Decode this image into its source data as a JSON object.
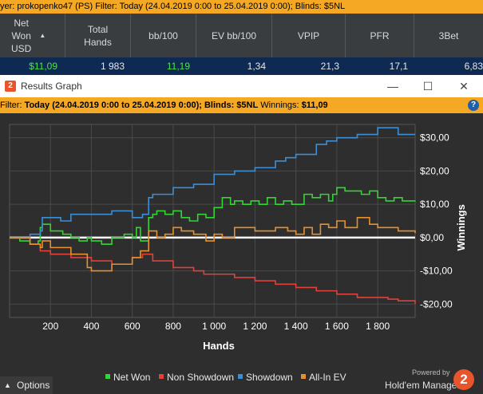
{
  "background_filter_text": "yer: prokopenko47 (PS)  Filter: Today (24.04.2019 0:00 to 25.04.2019 0:00); Blinds: $5NL",
  "stats": {
    "headers": [
      "Net\nWon\nUSD",
      "Total\nHands",
      "bb/100",
      "EV bb/100",
      "VPIP",
      "PFR",
      "3Bet"
    ],
    "row": [
      "$11,09",
      "1 983",
      "11,19",
      "1,34",
      "21,3",
      "17,1",
      "6,83"
    ]
  },
  "window": {
    "title": "Results Graph",
    "logo_text": "2",
    "minimize": "—",
    "maximize": "☐",
    "close": "✕"
  },
  "filter": {
    "prefix": "Filter:",
    "value": "Today (24.04.2019 0:00 to 25.04.2019 0:00); Blinds: $5NL",
    "winnings_label": "Winnings:",
    "winnings_value": "$11,09",
    "help": "?"
  },
  "options_label": "Options",
  "brand": {
    "powered_by": "Powered by",
    "name": "Hold'em Manager",
    "logo": "2"
  },
  "colors": {
    "net_won": "#35d435",
    "non_showdown": "#e0413a",
    "showdown": "#3a8fd6",
    "all_in_ev": "#e8902e",
    "accent_orange": "#f4a823"
  },
  "chart_data": {
    "type": "line",
    "xlabel": "Hands",
    "ylabel": "Winnings",
    "xlim": [
      0,
      1983
    ],
    "ylim": [
      -24,
      34
    ],
    "x_ticks": [
      200,
      400,
      600,
      800,
      1000,
      1200,
      1400,
      1600,
      1800
    ],
    "x_tick_labels": [
      "200",
      "400",
      "600",
      "800",
      "1 000",
      "1 200",
      "1 400",
      "1 600",
      "1 800"
    ],
    "y_ticks": [
      30,
      20,
      10,
      0,
      -10,
      -20
    ],
    "y_tick_labels": [
      "$30,00",
      "$20,00",
      "$10,00",
      "$0,00",
      "-$10,00",
      "-$20,00"
    ],
    "grid": true,
    "legend_position": "bottom",
    "series": [
      {
        "name": "Net Won",
        "color": "#35d435",
        "x": [
          0,
          50,
          100,
          140,
          150,
          160,
          200,
          260,
          300,
          340,
          380,
          400,
          450,
          500,
          560,
          600,
          620,
          640,
          680,
          700,
          720,
          760,
          800,
          840,
          880,
          920,
          960,
          1000,
          1040,
          1080,
          1100,
          1140,
          1180,
          1220,
          1260,
          1300,
          1340,
          1380,
          1400,
          1440,
          1480,
          1520,
          1560,
          1580,
          1600,
          1640,
          1680,
          1720,
          1760,
          1800,
          1840,
          1880,
          1920,
          1960,
          1983
        ],
        "values": [
          0,
          -1,
          -2,
          -1,
          3,
          4,
          2,
          1,
          0,
          -1,
          0,
          -1,
          -2,
          0,
          1,
          0,
          3,
          -1,
          6,
          7,
          8,
          7,
          8,
          6,
          5,
          7,
          6,
          9,
          12,
          10,
          11,
          10,
          11,
          10,
          12,
          10,
          11,
          10,
          10,
          13,
          12,
          13,
          11,
          13,
          15,
          14,
          14,
          13,
          14,
          12,
          11,
          12,
          11,
          11,
          11.09
        ]
      },
      {
        "name": "Non Showdown",
        "color": "#e0413a",
        "x": [
          0,
          100,
          150,
          200,
          300,
          400,
          500,
          600,
          650,
          700,
          800,
          900,
          950,
          1000,
          1100,
          1200,
          1300,
          1400,
          1500,
          1600,
          1700,
          1800,
          1850,
          1900,
          1983
        ],
        "values": [
          0,
          -2,
          -4,
          -5,
          -6,
          -7,
          -8,
          -6,
          -5,
          -7,
          -9,
          -10,
          -11,
          -11,
          -12,
          -13,
          -14,
          -15,
          -16,
          -17,
          -18,
          -18,
          -18.5,
          -19,
          -20
        ]
      },
      {
        "name": "Showdown",
        "color": "#3a8fd6",
        "x": [
          0,
          100,
          150,
          160,
          250,
          300,
          400,
          500,
          600,
          650,
          680,
          700,
          800,
          900,
          1000,
          1100,
          1200,
          1300,
          1350,
          1400,
          1500,
          1550,
          1600,
          1700,
          1800,
          1850,
          1900,
          1983
        ],
        "values": [
          0,
          1,
          2,
          6,
          5,
          7,
          7,
          8,
          6,
          7,
          12,
          13,
          15,
          16,
          19,
          20,
          21,
          23,
          24,
          25,
          28,
          29,
          30,
          31,
          33,
          33,
          31,
          31
        ]
      },
      {
        "name": "All-In EV",
        "color": "#e8902e",
        "x": [
          0,
          100,
          150,
          160,
          200,
          300,
          380,
          400,
          500,
          600,
          640,
          680,
          720,
          760,
          800,
          840,
          900,
          960,
          1000,
          1040,
          1100,
          1200,
          1300,
          1360,
          1400,
          1440,
          1480,
          1520,
          1560,
          1600,
          1640,
          1700,
          1760,
          1800,
          1860,
          1900,
          1983
        ],
        "values": [
          0,
          -2,
          -3,
          -1,
          -3,
          -5,
          -9,
          -10,
          -8,
          -6,
          -4,
          2,
          0,
          1,
          3,
          2,
          1,
          -1,
          1,
          0,
          3,
          2,
          3,
          2,
          1,
          3,
          1,
          4,
          3,
          5,
          3,
          6,
          4,
          3,
          3,
          2,
          1.34
        ]
      }
    ]
  }
}
